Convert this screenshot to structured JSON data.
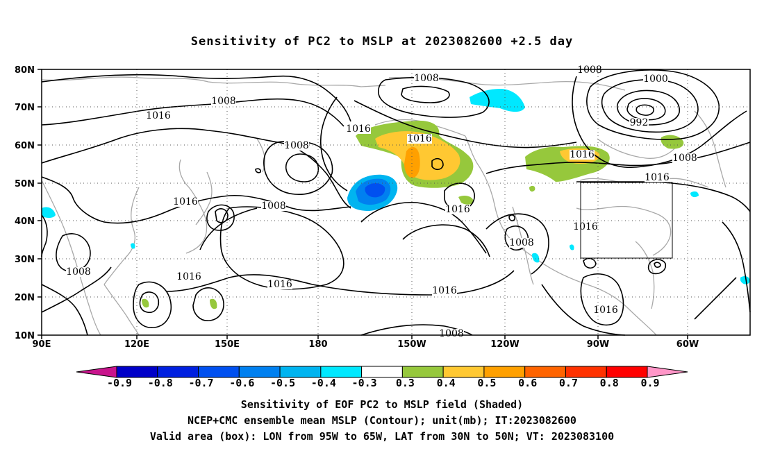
{
  "title": "Sensitivity of PC2 to MSLP at 2023082600 +2.5 day",
  "map": {
    "lat_labels": [
      "80N",
      "70N",
      "60N",
      "50N",
      "40N",
      "30N",
      "20N",
      "10N"
    ],
    "lon_labels": [
      "90E",
      "120E",
      "150E",
      "180",
      "150W",
      "120W",
      "90W",
      "60W"
    ],
    "contour_labels": [
      {
        "text": "1008"
      },
      {
        "text": "1016"
      },
      {
        "text": "1008"
      },
      {
        "text": "1016"
      },
      {
        "text": "1008"
      },
      {
        "text": "1016"
      },
      {
        "text": "1016"
      },
      {
        "text": "1008"
      },
      {
        "text": "1016"
      },
      {
        "text": "1016"
      },
      {
        "text": "1008"
      },
      {
        "text": "1016"
      },
      {
        "text": "1000"
      },
      {
        "text": "992"
      },
      {
        "text": "1016"
      },
      {
        "text": "1008"
      },
      {
        "text": "1016"
      },
      {
        "text": "1016"
      },
      {
        "text": "1016"
      },
      {
        "text": "1008"
      },
      {
        "text": "1008"
      },
      {
        "text": "1016"
      },
      {
        "text": "1008"
      }
    ],
    "valid_box": {
      "lon_from": "95W",
      "lon_to": "65W",
      "lat_from": "30N",
      "lat_to": "50N"
    }
  },
  "colorbar": {
    "labels": [
      "-0.9",
      "-0.8",
      "-0.7",
      "-0.6",
      "-0.5",
      "-0.4",
      "-0.3",
      "0.3",
      "0.4",
      "0.5",
      "0.6",
      "0.7",
      "0.8",
      "0.9"
    ],
    "colors": [
      "#0000c8",
      "#0020e0",
      "#0050f0",
      "#0080f0",
      "#00b4f0",
      "#00e8ff",
      "#ffffff",
      "#96c83c",
      "#ffc832",
      "#ffa000",
      "#ff6400",
      "#ff3200",
      "#ff0000"
    ],
    "under_color": "#c8148c",
    "over_color": "#ff96c8"
  },
  "captions": {
    "line1": "Sensitivity of EOF PC2 to MSLP field (Shaded)",
    "line2": "NCEP+CMC ensemble mean MSLP (Contour); unit(mb); IT:2023082600",
    "line3": "Valid area (box): LON from 95W to 65W, LAT from 30N to 50N; VT: 2023083100"
  }
}
